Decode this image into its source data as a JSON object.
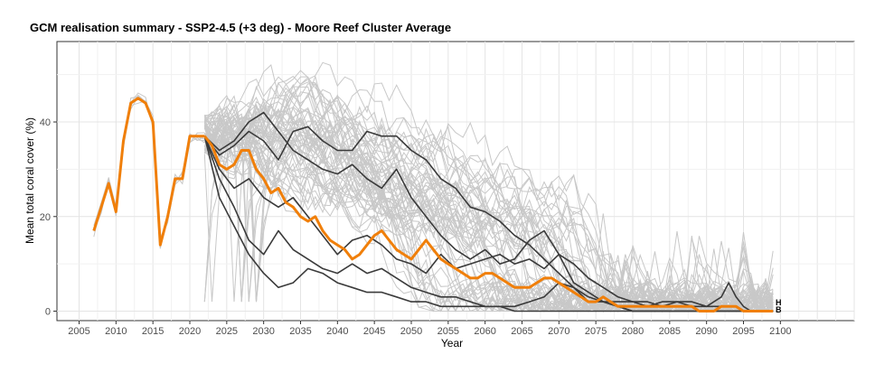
{
  "chart_data": {
    "type": "line",
    "title": "GCM realisation summary -  SSP2-4.5 (+3 deg) - Moore Reef Cluster Average",
    "xlabel": "Year",
    "ylabel": "Mean total coral cover (%)",
    "xlim": [
      2002,
      2110
    ],
    "ylim": [
      -2,
      57
    ],
    "x_ticks": [
      2005,
      2010,
      2015,
      2020,
      2025,
      2030,
      2035,
      2040,
      2045,
      2050,
      2055,
      2060,
      2065,
      2070,
      2075,
      2080,
      2085,
      2090,
      2095,
      2100
    ],
    "y_ticks": [
      0,
      20,
      40
    ],
    "grid": true,
    "colors": {
      "realisation": "#c8c8c8",
      "gcm": "#3a3a3a",
      "average": "#f07f0a"
    },
    "end_labels": [
      "H",
      "B"
    ],
    "history": {
      "x": [
        2007,
        2008,
        2009,
        2010,
        2011,
        2012,
        2013,
        2014,
        2015,
        2016,
        2017,
        2018,
        2019,
        2020,
        2021,
        2022
      ],
      "y": [
        17,
        22,
        27,
        21,
        36,
        44,
        45,
        44,
        40,
        14,
        20,
        28,
        28,
        37,
        37,
        37
      ]
    },
    "series": [
      {
        "name": "average",
        "x": [
          2022,
          2023,
          2024,
          2025,
          2026,
          2027,
          2028,
          2029,
          2030,
          2031,
          2032,
          2033,
          2034,
          2035,
          2036,
          2037,
          2038,
          2039,
          2040,
          2041,
          2042,
          2043,
          2044,
          2045,
          2046,
          2047,
          2048,
          2049,
          2050,
          2051,
          2052,
          2053,
          2054,
          2055,
          2056,
          2057,
          2058,
          2059,
          2060,
          2061,
          2062,
          2063,
          2064,
          2065,
          2066,
          2067,
          2068,
          2069,
          2070,
          2071,
          2072,
          2073,
          2074,
          2075,
          2076,
          2077,
          2078,
          2079,
          2080,
          2081,
          2082,
          2083,
          2084,
          2085,
          2086,
          2087,
          2088,
          2089,
          2090,
          2091,
          2092,
          2093,
          2094,
          2095,
          2096,
          2097,
          2098,
          2099
        ],
        "y": [
          37,
          35,
          31,
          30,
          31,
          34,
          34,
          30,
          28,
          25,
          26,
          23,
          22,
          20,
          19,
          20,
          17,
          15,
          14,
          13,
          11,
          12,
          14,
          16,
          17,
          15,
          13,
          12,
          11,
          13,
          15,
          13,
          11,
          10,
          9,
          8,
          7,
          7,
          8,
          8,
          7,
          6,
          5,
          5,
          5,
          6,
          7,
          7,
          6,
          5,
          4,
          3,
          2,
          2,
          3,
          2,
          1,
          1,
          1,
          1,
          1,
          1,
          1,
          1,
          1,
          1,
          1,
          0,
          0,
          0,
          1,
          1,
          1,
          0,
          0,
          0,
          0,
          0
        ]
      },
      {
        "name": "gcm-1",
        "x": [
          2022,
          2024,
          2026,
          2028,
          2030,
          2032,
          2034,
          2036,
          2038,
          2040,
          2042,
          2044,
          2046,
          2048,
          2050,
          2052,
          2054,
          2056,
          2058,
          2060,
          2062,
          2064,
          2066,
          2068,
          2070,
          2072,
          2074,
          2076,
          2078,
          2080,
          2099
        ],
        "y": [
          37,
          33,
          35,
          38,
          36,
          32,
          38,
          39,
          36,
          34,
          34,
          38,
          37,
          37,
          34,
          32,
          28,
          26,
          22,
          21,
          19,
          16,
          14,
          11,
          8,
          5,
          3,
          2,
          1,
          0,
          0
        ]
      },
      {
        "name": "gcm-2",
        "x": [
          2022,
          2024,
          2026,
          2028,
          2030,
          2032,
          2034,
          2036,
          2038,
          2040,
          2042,
          2044,
          2046,
          2048,
          2050,
          2052,
          2054,
          2056,
          2058,
          2060,
          2062,
          2064,
          2066,
          2068,
          2070,
          2072,
          2074,
          2076,
          2078,
          2080,
          2099
        ],
        "y": [
          37,
          34,
          36,
          40,
          42,
          38,
          34,
          32,
          30,
          29,
          31,
          28,
          26,
          30,
          24,
          20,
          16,
          13,
          11,
          13,
          10,
          11,
          15,
          17,
          12,
          6,
          4,
          2,
          1,
          0,
          0
        ]
      },
      {
        "name": "gcm-3",
        "x": [
          2022,
          2024,
          2026,
          2028,
          2030,
          2032,
          2034,
          2036,
          2038,
          2040,
          2042,
          2044,
          2046,
          2048,
          2050,
          2052,
          2054,
          2056,
          2058,
          2060,
          2062,
          2064,
          2066,
          2068,
          2070,
          2072,
          2074,
          2076,
          2078,
          2080,
          2082,
          2084,
          2086,
          2088,
          2090,
          2092,
          2093,
          2094,
          2095,
          2096,
          2097,
          2098,
          2099
        ],
        "y": [
          37,
          30,
          26,
          28,
          24,
          22,
          24,
          20,
          16,
          12,
          15,
          16,
          14,
          11,
          10,
          8,
          12,
          9,
          10,
          11,
          12,
          10,
          11,
          9,
          12,
          10,
          7,
          5,
          3,
          2,
          2,
          1,
          2,
          2,
          1,
          1,
          1,
          1,
          0,
          0,
          0,
          0,
          0
        ]
      },
      {
        "name": "gcm-4",
        "x": [
          2022,
          2024,
          2026,
          2028,
          2030,
          2032,
          2034,
          2036,
          2038,
          2040,
          2042,
          2044,
          2046,
          2048,
          2050,
          2052,
          2054,
          2056,
          2058,
          2060,
          2062,
          2064,
          2066,
          2068,
          2070,
          2072,
          2074,
          2076,
          2078,
          2080,
          2082,
          2084,
          2086,
          2088,
          2090,
          2092,
          2093,
          2094,
          2095,
          2096,
          2097,
          2098,
          2099
        ],
        "y": [
          37,
          28,
          22,
          15,
          12,
          17,
          13,
          11,
          9,
          8,
          10,
          8,
          9,
          7,
          5,
          4,
          3,
          3,
          2,
          1,
          1,
          1,
          2,
          3,
          6,
          5,
          2,
          2,
          2,
          2,
          1,
          2,
          2,
          1,
          1,
          3,
          6,
          3,
          1,
          0,
          0,
          0,
          0
        ]
      },
      {
        "name": "gcm-5",
        "x": [
          2022,
          2024,
          2026,
          2028,
          2030,
          2032,
          2034,
          2036,
          2038,
          2040,
          2042,
          2044,
          2046,
          2048,
          2050,
          2052,
          2054,
          2056,
          2058,
          2060,
          2062,
          2064,
          2066,
          2068,
          2070,
          2072,
          2074,
          2076,
          2078,
          2080,
          2099
        ],
        "y": [
          37,
          24,
          18,
          12,
          8,
          5,
          6,
          9,
          8,
          6,
          5,
          4,
          4,
          3,
          2,
          2,
          1,
          1,
          1,
          1,
          1,
          0,
          0,
          0,
          0,
          0,
          0,
          0,
          0,
          0,
          0
        ]
      }
    ]
  }
}
